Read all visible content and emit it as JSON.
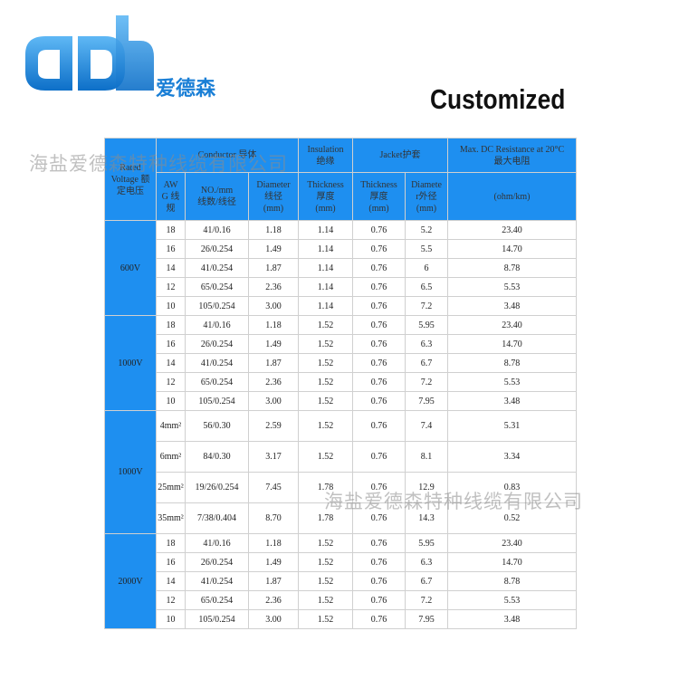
{
  "logo": {
    "name": "爱德森"
  },
  "headline": "Customized",
  "watermarks": [
    "海盐爱德森特种线缆有限公司",
    "海盐爱德森特种线缆有限公司"
  ],
  "table": {
    "header": {
      "voltage": "Rated\nVoltage 额\n定电压",
      "conductor": "Conductor 导体",
      "insulation": "Insulation\n绝缘",
      "jacket": "Jacket护套",
      "resistance": "Max. DC Resistance at 20°C\n最大电阻",
      "awg": "AW\nG 线\n规",
      "strand": "NO./mm\n线数/线径",
      "cond_diameter": "Diameter\n线径\n(mm)",
      "ins_thickness": "Thickness\n厚度\n(mm)",
      "jac_thickness": "Thickness\n厚度\n(mm)",
      "jac_diameter": "Diamete\nr外径\n(mm)",
      "unit": "(ohm/km)"
    },
    "groups": [
      {
        "voltage": "600V",
        "rows": [
          [
            "18",
            "41/0.16",
            "1.18",
            "1.14",
            "0.76",
            "5.2",
            "23.40"
          ],
          [
            "16",
            "26/0.254",
            "1.49",
            "1.14",
            "0.76",
            "5.5",
            "14.70"
          ],
          [
            "14",
            "41/0.254",
            "1.87",
            "1.14",
            "0.76",
            "6",
            "8.78"
          ],
          [
            "12",
            "65/0.254",
            "2.36",
            "1.14",
            "0.76",
            "6.5",
            "5.53"
          ],
          [
            "10",
            "105/0.254",
            "3.00",
            "1.14",
            "0.76",
            "7.2",
            "3.48"
          ]
        ]
      },
      {
        "voltage": "1000V",
        "rows": [
          [
            "18",
            "41/0.16",
            "1.18",
            "1.52",
            "0.76",
            "5.95",
            "23.40"
          ],
          [
            "16",
            "26/0.254",
            "1.49",
            "1.52",
            "0.76",
            "6.3",
            "14.70"
          ],
          [
            "14",
            "41/0.254",
            "1.87",
            "1.52",
            "0.76",
            "6.7",
            "8.78"
          ],
          [
            "12",
            "65/0.254",
            "2.36",
            "1.52",
            "0.76",
            "7.2",
            "5.53"
          ],
          [
            "10",
            "105/0.254",
            "3.00",
            "1.52",
            "0.76",
            "7.95",
            "3.48"
          ]
        ]
      },
      {
        "voltage": "1000V",
        "rows": [
          [
            "4mm²",
            "56/0.30",
            "2.59",
            "1.52",
            "0.76",
            "7.4",
            "5.31"
          ],
          [
            "6mm²",
            "84/0.30",
            "3.17",
            "1.52",
            "0.76",
            "8.1",
            "3.34"
          ],
          [
            "25mm²",
            "19/26/0.254",
            "7.45",
            "1.78",
            "0.76",
            "12.9",
            "0.83"
          ],
          [
            "35mm²",
            "7/38/0.404",
            "8.70",
            "1.78",
            "0.76",
            "14.3",
            "0.52"
          ]
        ]
      },
      {
        "voltage": "2000V",
        "rows": [
          [
            "18",
            "41/0.16",
            "1.18",
            "1.52",
            "0.76",
            "5.95",
            "23.40"
          ],
          [
            "16",
            "26/0.254",
            "1.49",
            "1.52",
            "0.76",
            "6.3",
            "14.70"
          ],
          [
            "14",
            "41/0.254",
            "1.87",
            "1.52",
            "0.76",
            "6.7",
            "8.78"
          ],
          [
            "12",
            "65/0.254",
            "2.36",
            "1.52",
            "0.76",
            "7.2",
            "5.53"
          ],
          [
            "10",
            "105/0.254",
            "3.00",
            "1.52",
            "0.76",
            "7.95",
            "3.48"
          ]
        ]
      }
    ]
  }
}
